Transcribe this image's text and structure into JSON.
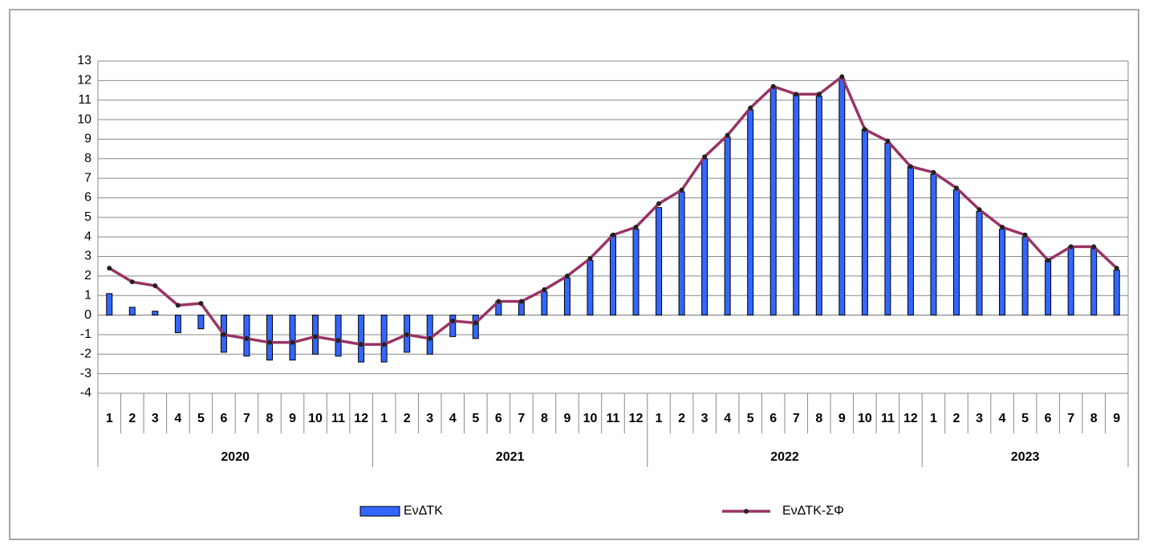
{
  "chart_data": {
    "type": "bar-line",
    "categories": [
      "1",
      "2",
      "3",
      "4",
      "5",
      "6",
      "7",
      "8",
      "9",
      "10",
      "11",
      "12",
      "1",
      "2",
      "3",
      "4",
      "5",
      "6",
      "7",
      "8",
      "9",
      "10",
      "11",
      "12",
      "1",
      "2",
      "3",
      "4",
      "5",
      "6",
      "7",
      "8",
      "9",
      "10",
      "11",
      "12",
      "1",
      "2",
      "3",
      "4",
      "5",
      "6",
      "7",
      "8",
      "9"
    ],
    "years": [
      "2020",
      "2021",
      "2022",
      "2023"
    ],
    "series": [
      {
        "name": "ΕνΔΤΚ",
        "kind": "bar",
        "color": "#3366ff",
        "values": [
          1.1,
          0.4,
          0.2,
          -0.9,
          -0.7,
          -1.9,
          -2.1,
          -2.3,
          -2.3,
          -2.0,
          -2.1,
          -2.4,
          -2.4,
          -1.9,
          -2.0,
          -1.1,
          -1.2,
          0.7,
          0.7,
          1.2,
          1.9,
          2.8,
          4.1,
          4.4,
          5.5,
          6.3,
          8.0,
          9.1,
          10.5,
          11.6,
          11.3,
          11.2,
          12.1,
          9.5,
          8.8,
          7.6,
          7.2,
          6.4,
          5.3,
          4.4,
          4.0,
          2.8,
          3.5,
          3.4,
          2.3
        ]
      },
      {
        "name": "ΕνΔΤΚ-ΣΦ",
        "kind": "line",
        "color": "#993366",
        "values": [
          2.4,
          1.7,
          1.5,
          0.5,
          0.6,
          -1.0,
          -1.2,
          -1.4,
          -1.4,
          -1.1,
          -1.3,
          -1.5,
          -1.5,
          -1.0,
          -1.2,
          -0.3,
          -0.4,
          0.7,
          0.7,
          1.3,
          2.0,
          2.9,
          4.1,
          4.5,
          5.7,
          6.4,
          8.1,
          9.2,
          10.6,
          11.7,
          11.3,
          11.3,
          12.2,
          9.5,
          8.9,
          7.6,
          7.3,
          6.5,
          5.4,
          4.5,
          4.1,
          2.8,
          3.5,
          3.5,
          2.4
        ]
      }
    ],
    "ylim": [
      -4,
      13
    ],
    "yticks": [
      -4,
      -3,
      -2,
      -1,
      0,
      1,
      2,
      3,
      4,
      5,
      6,
      7,
      8,
      9,
      10,
      11,
      12,
      13
    ],
    "grid": true,
    "legend": "bottom"
  }
}
